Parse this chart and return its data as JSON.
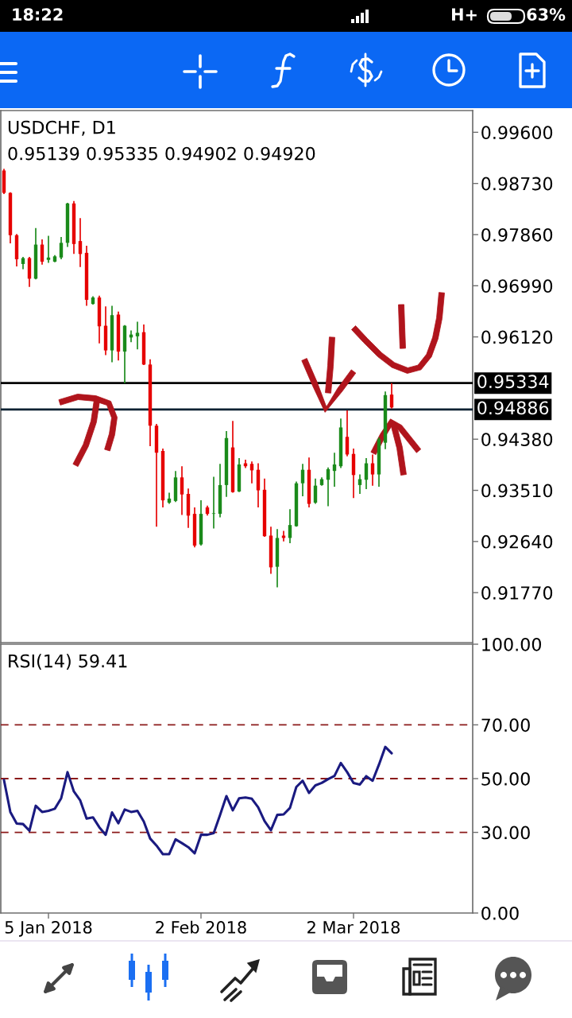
{
  "chart_data": [
    {
      "type": "candlestick",
      "title": "USDCHF, D1",
      "subtitle": "0.95139 0.95335 0.94902 0.94920",
      "categories": [
        null,
        null,
        null,
        null,
        null,
        null,
        null,
        null,
        null,
        null,
        null,
        null,
        null,
        null,
        null,
        null,
        null,
        null,
        null,
        null,
        null,
        null,
        null,
        null,
        null,
        null,
        null,
        null,
        null,
        null,
        null,
        null,
        null,
        null,
        null,
        null,
        null,
        null,
        null,
        null,
        null,
        null,
        null,
        null,
        null,
        null,
        null,
        null,
        null,
        null,
        null,
        null,
        null,
        null,
        null,
        null,
        null,
        null,
        null,
        null,
        null,
        null
      ],
      "ohlc": [
        [
          0.9895,
          0.9898,
          0.9855,
          0.9857
        ],
        [
          0.9857,
          0.9858,
          0.9771,
          0.9785
        ],
        [
          0.9785,
          0.9787,
          0.9732,
          0.9744
        ],
        [
          0.9736,
          0.9748,
          0.9727,
          0.9746
        ],
        [
          0.9746,
          0.9748,
          0.9697,
          0.9711
        ],
        [
          0.9711,
          0.9797,
          0.971,
          0.9769
        ],
        [
          0.9769,
          0.9778,
          0.9735,
          0.974
        ],
        [
          0.9743,
          0.9784,
          0.9738,
          0.9747
        ],
        [
          0.974,
          0.9751,
          0.9739,
          0.9749
        ],
        [
          0.9747,
          0.9782,
          0.9744,
          0.9772
        ],
        [
          0.9772,
          0.984,
          0.9765,
          0.9839
        ],
        [
          0.9839,
          0.9843,
          0.9753,
          0.977
        ],
        [
          0.9775,
          0.9814,
          0.9731,
          0.9753
        ],
        [
          0.9755,
          0.9767,
          0.9665,
          0.9675
        ],
        [
          0.9668,
          0.9681,
          0.9667,
          0.9679
        ],
        [
          0.9679,
          0.9682,
          0.9601,
          0.963
        ],
        [
          0.9631,
          0.9664,
          0.9581,
          0.9589
        ],
        [
          0.9589,
          0.9665,
          0.9569,
          0.9649
        ],
        [
          0.965,
          0.9655,
          0.9572,
          0.9587
        ],
        [
          0.9587,
          0.9632,
          0.9533,
          0.9631
        ],
        [
          0.9611,
          0.9623,
          0.9603,
          0.9616
        ],
        [
          0.9613,
          0.9638,
          0.9591,
          0.9619
        ],
        [
          0.962,
          0.9633,
          0.9564,
          0.9565
        ],
        [
          0.9565,
          0.9574,
          0.9426,
          0.9461
        ],
        [
          0.9461,
          0.9464,
          0.9289,
          0.9415
        ],
        [
          0.9418,
          0.9422,
          0.9322,
          0.9334
        ],
        [
          0.933,
          0.9347,
          0.9328,
          0.9337
        ],
        [
          0.9333,
          0.9384,
          0.9331,
          0.9373
        ],
        [
          0.9373,
          0.9392,
          0.9309,
          0.9344
        ],
        [
          0.9345,
          0.9354,
          0.9287,
          0.9308
        ],
        [
          0.9311,
          0.9322,
          0.9254,
          0.9257
        ],
        [
          0.9259,
          0.9334,
          0.9257,
          0.9311
        ],
        [
          0.9322,
          0.9325,
          0.9308,
          0.9311
        ],
        [
          0.9311,
          0.9374,
          0.9286,
          0.9312
        ],
        [
          0.9311,
          0.9396,
          0.9305,
          0.936
        ],
        [
          0.936,
          0.9452,
          0.934,
          0.944
        ],
        [
          0.9424,
          0.9469,
          0.9347,
          0.9348
        ],
        [
          0.9349,
          0.9406,
          0.9348,
          0.9395
        ],
        [
          0.9397,
          0.9403,
          0.9389,
          0.9392
        ],
        [
          0.9396,
          0.94,
          0.9363,
          0.9385
        ],
        [
          0.9386,
          0.9397,
          0.9322,
          0.9351
        ],
        [
          0.9352,
          0.9371,
          0.9272,
          0.9273
        ],
        [
          0.9274,
          0.9289,
          0.9209,
          0.922
        ],
        [
          0.9221,
          0.9285,
          0.9186,
          0.927
        ],
        [
          0.9274,
          0.9282,
          0.9264,
          0.927
        ],
        [
          0.927,
          0.9319,
          0.9261,
          0.9292
        ],
        [
          0.929,
          0.9366,
          0.9289,
          0.9363
        ],
        [
          0.9363,
          0.9396,
          0.9341,
          0.9386
        ],
        [
          0.9386,
          0.9407,
          0.9322,
          0.9328
        ],
        [
          0.933,
          0.9371,
          0.9328,
          0.9359
        ],
        [
          0.936,
          0.9373,
          0.9359,
          0.937
        ],
        [
          0.9369,
          0.939,
          0.9324,
          0.9387
        ],
        [
          0.9384,
          0.9415,
          0.9357,
          0.9395
        ],
        [
          0.9392,
          0.9473,
          0.9389,
          0.9458
        ],
        [
          0.9442,
          0.9487,
          0.9409,
          0.9412
        ],
        [
          0.9413,
          0.9422,
          0.9338,
          0.9377
        ],
        [
          0.936,
          0.9378,
          0.9345,
          0.937
        ],
        [
          0.9369,
          0.9406,
          0.9353,
          0.9397
        ],
        [
          0.9397,
          0.9412,
          0.9359,
          0.9378
        ],
        [
          0.9378,
          0.9441,
          0.9357,
          0.9438
        ],
        [
          0.9432,
          0.9519,
          0.9421,
          0.9513
        ],
        [
          0.95139,
          0.95335,
          0.94902,
          0.9492
        ]
      ],
      "colors": [
        "#e60000",
        "#e60000",
        "#e60000",
        "#1a8a1a",
        "#e60000",
        "#1a8a1a",
        "#e60000",
        "#1a8a1a",
        "#1a8a1a",
        "#1a8a1a",
        "#1a8a1a",
        "#e60000",
        "#e60000",
        "#e60000",
        "#1a8a1a",
        "#e60000",
        "#e60000",
        "#1a8a1a",
        "#e60000",
        "#1a8a1a",
        "#1a8a1a",
        "#1a8a1a",
        "#e60000",
        "#e60000",
        "#e60000",
        "#e60000",
        "#1a8a1a",
        "#1a8a1a",
        "#e60000",
        "#e60000",
        "#e60000",
        "#1a8a1a",
        "#e60000",
        "#1a8a1a",
        "#1a8a1a",
        "#1a8a1a",
        "#e60000",
        "#1a8a1a",
        "#e60000",
        "#e60000",
        "#e60000",
        "#e60000",
        "#e60000",
        "#1a8a1a",
        "#e60000",
        "#1a8a1a",
        "#1a8a1a",
        "#1a8a1a",
        "#e60000",
        "#1a8a1a",
        "#1a8a1a",
        "#1a8a1a",
        "#1a8a1a",
        "#1a8a1a",
        "#e60000",
        "#e60000",
        "#1a8a1a",
        "#1a8a1a",
        "#e60000",
        "#1a8a1a",
        "#1a8a1a",
        "#e60000"
      ],
      "ylim": [
        0.9092,
        0.9997
      ],
      "yticks": [
        {
          "value": 0.996,
          "label": "0.99600"
        },
        {
          "value": 0.9873,
          "label": "0.98730"
        },
        {
          "value": 0.9786,
          "label": "0.97860"
        },
        {
          "value": 0.9699,
          "label": "0.96990"
        },
        {
          "value": 0.9612,
          "label": "0.96120"
        },
        {
          "value": 0.9438,
          "label": "0.94380"
        },
        {
          "value": 0.9351,
          "label": "0.93510"
        },
        {
          "value": 0.9264,
          "label": "0.92640"
        },
        {
          "value": 0.9177,
          "label": "0.91770"
        }
      ],
      "ref_lines": [
        {
          "axis": "y",
          "value": 0.95334,
          "label": "0.95334",
          "color": "#000000"
        },
        {
          "axis": "y",
          "value": 0.94886,
          "label": "0.94886",
          "color": "#0d2233"
        }
      ],
      "annotations": [
        "18:22",
        "H+",
        "63%"
      ]
    },
    {
      "type": "line",
      "title": "RSI(14) 59.41",
      "categories": [
        null,
        null,
        null,
        null,
        null,
        null,
        null,
        "5 Jan 2018",
        null,
        null,
        null,
        null,
        null,
        null,
        null,
        null,
        null,
        null,
        null,
        null,
        null,
        null,
        null,
        null,
        null,
        null,
        null,
        null,
        null,
        null,
        null,
        "2 Feb 2018",
        null,
        null,
        null,
        null,
        null,
        null,
        null,
        null,
        null,
        null,
        null,
        null,
        null,
        null,
        null,
        null,
        null,
        null,
        null,
        null,
        null,
        null,
        null,
        "2 Mar 2018",
        null,
        null,
        null,
        null,
        null,
        null
      ],
      "series": [
        {
          "color": "#1a1a80",
          "values": [
            49.5,
            37.6,
            33.3,
            33.1,
            30.6,
            39.9,
            37.6,
            38.0,
            38.8,
            42.7,
            52.4,
            45.2,
            41.9,
            35.1,
            35.6,
            31.9,
            29.1,
            37.4,
            33.4,
            38.5,
            37.6,
            38.0,
            34.0,
            27.7,
            25.1,
            21.9,
            21.9,
            27.4,
            26.0,
            24.5,
            22.2,
            29.1,
            29.1,
            29.7,
            36.5,
            43.5,
            38.2,
            42.7,
            43.0,
            42.5,
            39.3,
            34.2,
            30.8,
            36.5,
            36.7,
            39.1,
            46.9,
            49.2,
            44.7,
            47.5,
            48.4,
            49.8,
            51.0,
            55.8,
            52.4,
            48.4,
            47.8,
            50.9,
            49.2,
            55.2,
            61.8,
            59.41
          ]
        }
      ],
      "ylim": [
        0,
        100
      ],
      "yticks": [
        {
          "value": 0,
          "label": "0.00"
        },
        {
          "value": 30,
          "label": "30.00"
        },
        {
          "value": 50,
          "label": "50.00"
        },
        {
          "value": 70,
          "label": "70.00"
        },
        {
          "value": 100,
          "label": "100.00"
        }
      ],
      "ref_lines": [
        {
          "axis": "y",
          "value": 70,
          "color": "#8b1a1a",
          "line_style": "dashed"
        },
        {
          "axis": "y",
          "value": 50,
          "color": "#8b1a1a",
          "line_style": "dashed"
        },
        {
          "axis": "y",
          "value": 30,
          "color": "#8b1a1a",
          "line_style": "dashed"
        }
      ]
    }
  ]
}
